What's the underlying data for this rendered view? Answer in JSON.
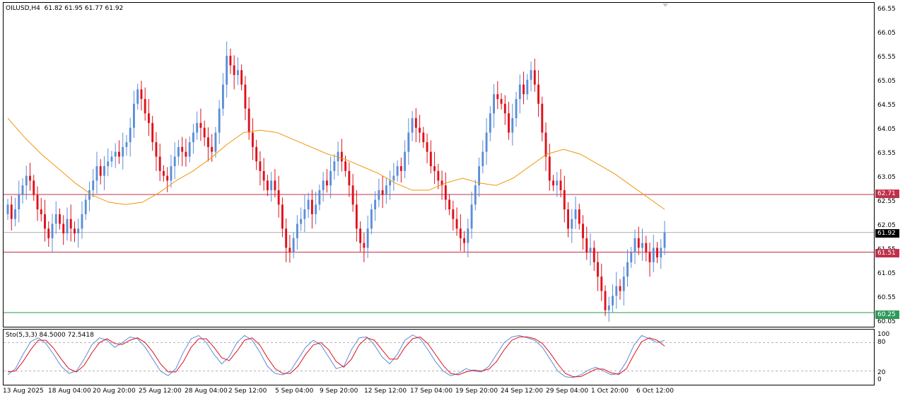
{
  "header": {
    "symbol": "OILUSD,H4",
    "ohlc": "61.82 61.95 61.77 61.92"
  },
  "oscillator": {
    "title": "Sto(5,3,3) 84.5000 72.5418",
    "axis_labels": [
      "100",
      "80",
      "20",
      "0"
    ]
  },
  "price_axis": [
    "66.55",
    "66.05",
    "65.55",
    "65.05",
    "64.55",
    "64.05",
    "63.55",
    "63.05",
    "62.55",
    "62.05",
    "61.55",
    "61.05",
    "60.55",
    "60.05"
  ],
  "time_axis": [
    "13 Aug 2025",
    "18 Aug 04:00",
    "20 Aug 20:00",
    "25 Aug 12:00",
    "28 Aug 04:00",
    "2 Sep 12:00",
    "5 Sep 04:00",
    "9 Sep 20:00",
    "12 Sep 12:00",
    "17 Sep 04:00",
    "19 Sep 20:00",
    "24 Sep 12:00",
    "29 Sep 04:00",
    "1 Oct 20:00",
    "6 Oct 12:00"
  ],
  "price_tags": {
    "resistance": "62.71",
    "current": "61.92",
    "support": "61.51",
    "low": "60.25"
  },
  "colors": {
    "bull": "#5b8ed8",
    "bear": "#e0101a",
    "moving_average": "#f0960a",
    "level_line": "#c0304a",
    "low_line": "#2e9a5a",
    "stoch_main": "#5b8ed8",
    "stoch_signal": "#e0101a"
  },
  "chart_data": {
    "type": "candlestick",
    "symbol": "OILUSD",
    "timeframe": "H4",
    "ylim": [
      60.0,
      66.6
    ],
    "levels": [
      62.71,
      61.92,
      61.51,
      60.25
    ],
    "closes": [
      62.5,
      62.2,
      62.4,
      62.7,
      62.9,
      63.1,
      63.0,
      62.7,
      62.4,
      62.3,
      62.0,
      61.8,
      62.1,
      62.3,
      62.1,
      61.9,
      62.2,
      62.0,
      61.9,
      62.0,
      62.3,
      62.6,
      62.8,
      63.0,
      63.3,
      63.1,
      63.3,
      63.4,
      63.5,
      63.6,
      63.5,
      63.7,
      63.8,
      64.1,
      64.6,
      64.9,
      64.7,
      64.4,
      64.2,
      63.8,
      63.5,
      63.2,
      63.1,
      63.0,
      63.3,
      63.5,
      63.7,
      63.6,
      63.5,
      63.8,
      64.0,
      64.2,
      64.1,
      63.9,
      63.7,
      63.6,
      64.0,
      64.5,
      65.0,
      65.6,
      65.4,
      65.2,
      65.3,
      65.0,
      64.5,
      64.0,
      63.7,
      63.4,
      63.2,
      63.0,
      62.8,
      63.0,
      62.8,
      62.5,
      62.0,
      61.6,
      61.5,
      61.8,
      62.1,
      62.2,
      62.4,
      62.6,
      62.3,
      62.5,
      62.8,
      63.0,
      62.9,
      63.2,
      63.4,
      63.6,
      63.4,
      63.2,
      62.9,
      62.5,
      62.0,
      61.7,
      61.6,
      62.0,
      62.4,
      62.6,
      62.8,
      62.7,
      62.9,
      63.0,
      63.1,
      63.3,
      63.2,
      63.6,
      64.0,
      64.3,
      64.1,
      64.0,
      63.8,
      63.6,
      63.3,
      63.2,
      63.0,
      62.9,
      62.6,
      62.4,
      62.2,
      62.0,
      61.8,
      61.7,
      62.0,
      62.5,
      62.9,
      63.3,
      63.6,
      64.0,
      64.4,
      64.8,
      64.7,
      64.6,
      64.4,
      64.0,
      64.3,
      64.7,
      65.0,
      64.8,
      65.1,
      65.3,
      65.0,
      64.6,
      64.0,
      63.5,
      63.0,
      62.9,
      63.0,
      62.8,
      62.4,
      62.0,
      62.2,
      62.4,
      62.1,
      61.8,
      61.5,
      61.6,
      61.3,
      61.0,
      60.7,
      60.3,
      60.4,
      60.6,
      60.8,
      60.7,
      61.0,
      61.3,
      61.5,
      61.8,
      61.6,
      61.7,
      61.5,
      61.3,
      61.6,
      61.4,
      61.6,
      61.92
    ],
    "moving_average": [
      64.3,
      63.9,
      63.55,
      63.25,
      62.95,
      62.7,
      62.55,
      62.5,
      62.55,
      62.75,
      63.0,
      63.2,
      63.45,
      63.75,
      64.0,
      64.05,
      64.0,
      63.85,
      63.7,
      63.55,
      63.45,
      63.3,
      63.15,
      62.95,
      62.8,
      62.8,
      62.95,
      63.05,
      62.95,
      62.9,
      63.05,
      63.3,
      63.55,
      63.65,
      63.55,
      63.35,
      63.15,
      62.9,
      62.65,
      62.4
    ],
    "stochastic": {
      "name": "Sto(5,3,3)",
      "main_value": 84.5,
      "signal_value": 72.5418,
      "ylim": [
        0,
        100
      ],
      "levels": [
        20,
        80
      ],
      "main": [
        12,
        25,
        55,
        82,
        90,
        78,
        55,
        30,
        15,
        20,
        45,
        75,
        90,
        85,
        70,
        80,
        92,
        88,
        70,
        45,
        20,
        10,
        25,
        60,
        88,
        95,
        80,
        55,
        35,
        50,
        80,
        95,
        85,
        60,
        30,
        15,
        12,
        20,
        45,
        70,
        85,
        75,
        50,
        25,
        30,
        65,
        90,
        92,
        75,
        50,
        35,
        55,
        85,
        96,
        88,
        65,
        40,
        20,
        10,
        15,
        25,
        20,
        18,
        30,
        55,
        80,
        92,
        95,
        90,
        85,
        70,
        45,
        20,
        8,
        6,
        12,
        22,
        28,
        20,
        12,
        15,
        40,
        75,
        95,
        88,
        80,
        84.5
      ],
      "signal": [
        18,
        20,
        40,
        65,
        85,
        85,
        68,
        45,
        25,
        18,
        32,
        58,
        80,
        88,
        78,
        76,
        85,
        90,
        80,
        60,
        35,
        18,
        18,
        40,
        70,
        88,
        88,
        70,
        48,
        42,
        62,
        85,
        90,
        75,
        48,
        25,
        15,
        15,
        30,
        55,
        75,
        80,
        65,
        40,
        28,
        45,
        75,
        90,
        85,
        65,
        45,
        45,
        70,
        88,
        92,
        78,
        55,
        32,
        15,
        12,
        18,
        22,
        20,
        24,
        40,
        65,
        85,
        92,
        92,
        88,
        78,
        58,
        35,
        15,
        8,
        8,
        16,
        24,
        24,
        16,
        13,
        25,
        55,
        82,
        90,
        85,
        72.5418
      ]
    }
  }
}
